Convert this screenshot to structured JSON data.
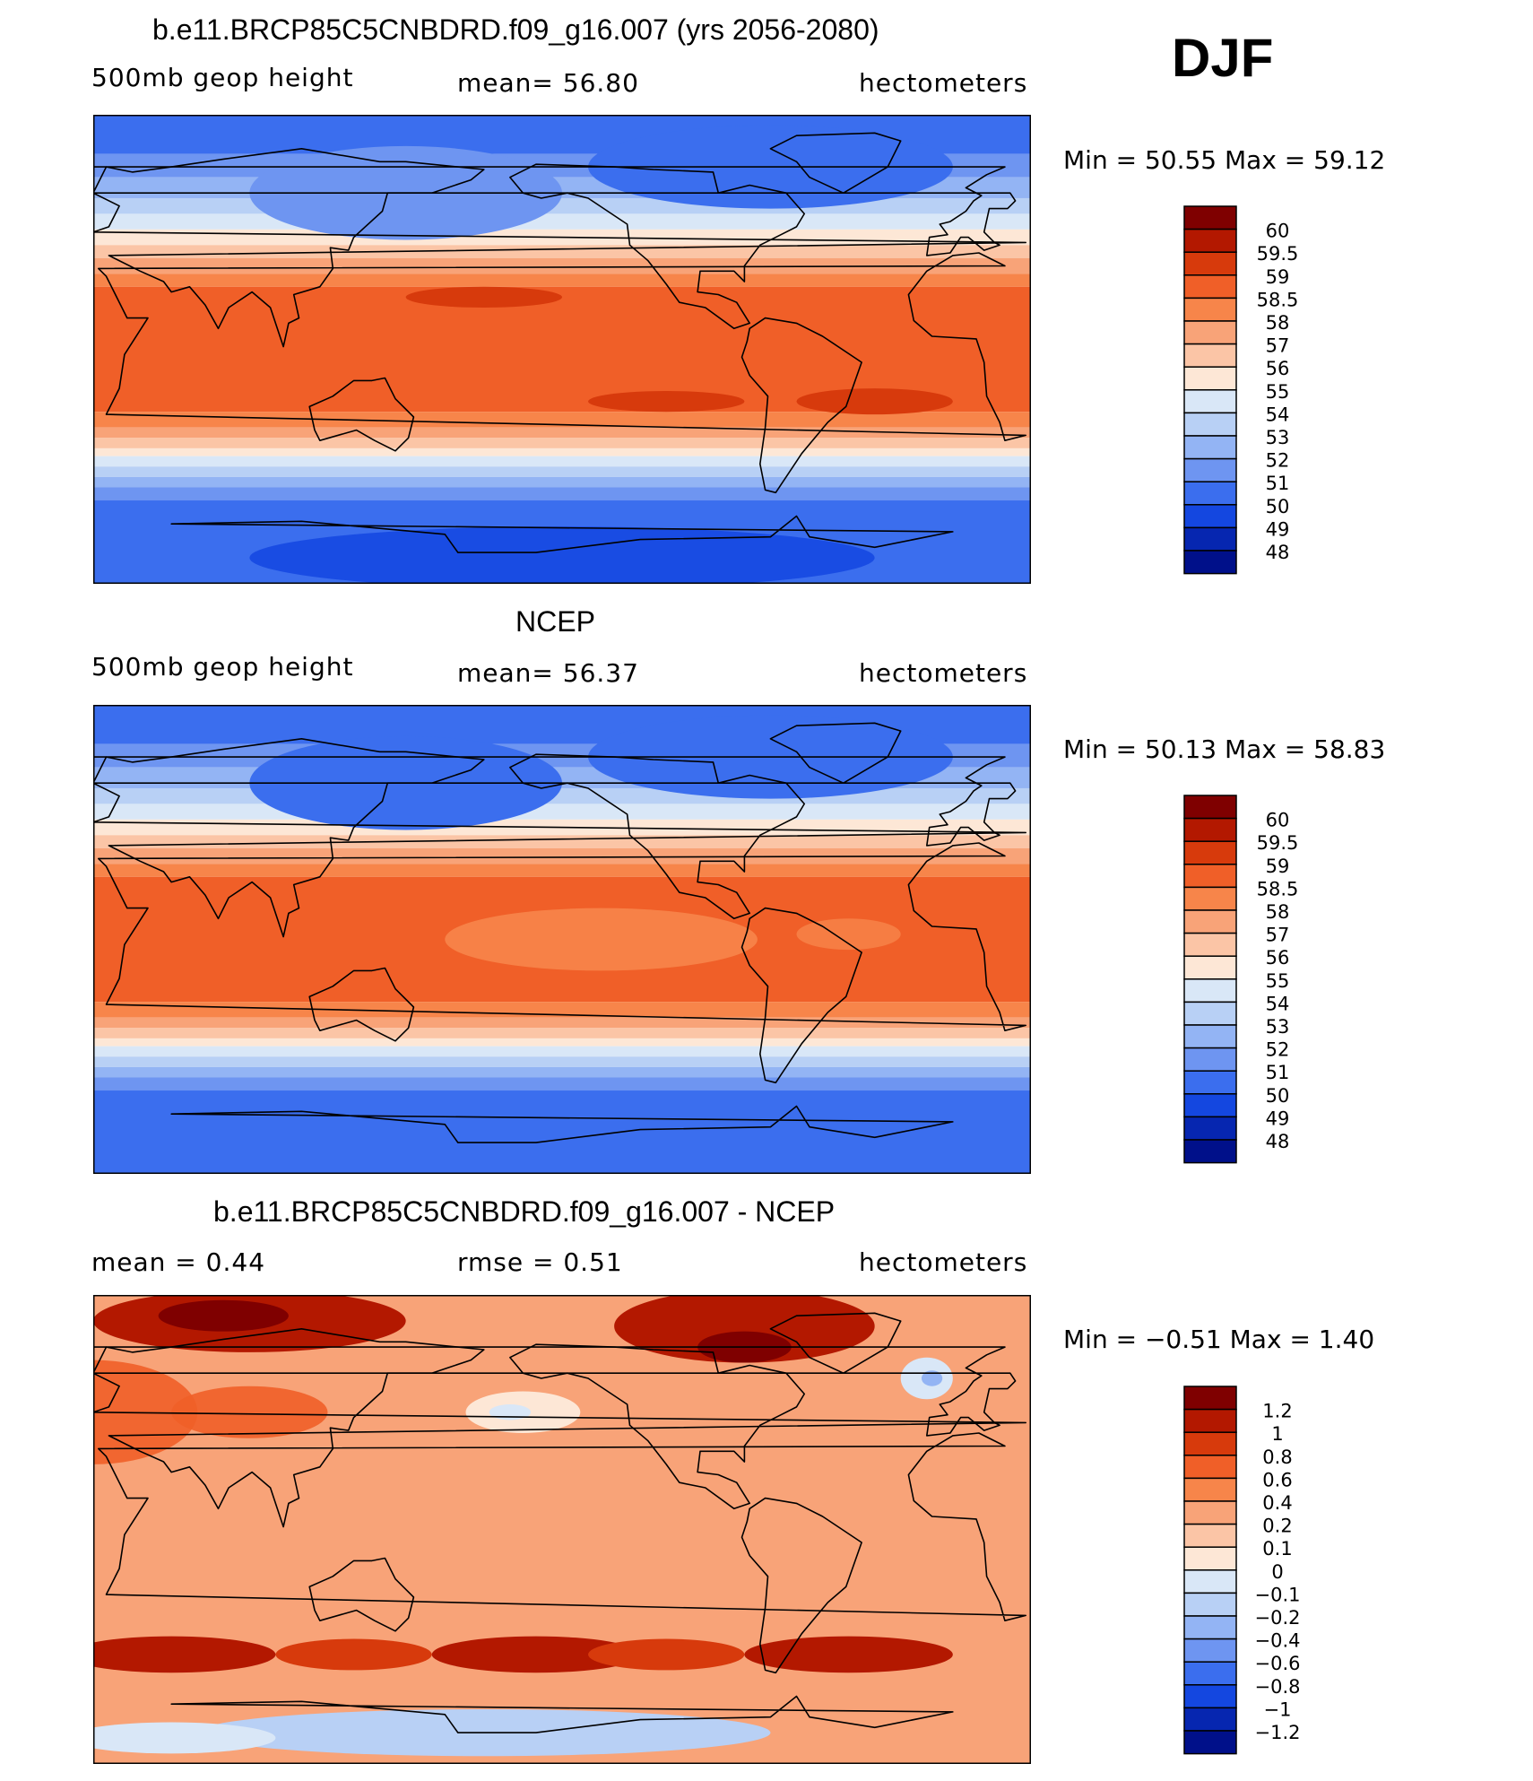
{
  "season": "DJF",
  "panels": [
    {
      "title": "b.e11.BRCP85C5CNBDRD.f09_g16.007 (yrs 2056-2080)",
      "variable": "500mb geop height",
      "stat": "mean=   56.80",
      "units": "hectometers",
      "minmax": "Min =   50.55  Max =   59.12",
      "colorbar": {
        "labels": [
          "60",
          "59.5",
          "59",
          "58.5",
          "58",
          "57",
          "56",
          "55",
          "54",
          "53",
          "52",
          "51",
          "50",
          "49",
          "48"
        ],
        "colors": [
          "#7f0000",
          "#b31800",
          "#d73a0c",
          "#f05f28",
          "#f7854a",
          "#f8a378",
          "#fbc5a6",
          "#fde7d6",
          "#d9e7f7",
          "#b8d0f5",
          "#93b4f4",
          "#6e95f1",
          "#3b6eee",
          "#1447e0",
          "#0626b0",
          "#00108a"
        ]
      },
      "map_style": "absolute"
    },
    {
      "title": "NCEP",
      "variable": "500mb geop height",
      "stat": "mean=   56.37",
      "units": "hectometers",
      "minmax": "Min =   50.13  Max =   58.83",
      "colorbar": {
        "labels": [
          "60",
          "59.5",
          "59",
          "58.5",
          "58",
          "57",
          "56",
          "55",
          "54",
          "53",
          "52",
          "51",
          "50",
          "49",
          "48"
        ],
        "colors": [
          "#7f0000",
          "#b31800",
          "#d73a0c",
          "#f05f28",
          "#f7854a",
          "#f8a378",
          "#fbc5a6",
          "#fde7d6",
          "#d9e7f7",
          "#b8d0f5",
          "#93b4f4",
          "#6e95f1",
          "#3b6eee",
          "#1447e0",
          "#0626b0",
          "#00108a"
        ]
      },
      "map_style": "absolute"
    },
    {
      "title": "b.e11.BRCP85C5CNBDRD.f09_g16.007 - NCEP",
      "variable": "mean =    0.44",
      "stat": "rmse =    0.51",
      "units": "hectometers",
      "minmax": "Min =   −0.51  Max =    1.40",
      "colorbar": {
        "labels": [
          "1.2",
          "1",
          "0.8",
          "0.6",
          "0.4",
          "0.2",
          "0.1",
          "0",
          "−0.1",
          "−0.2",
          "−0.4",
          "−0.6",
          "−0.8",
          "−1",
          "−1.2"
        ],
        "colors": [
          "#7f0000",
          "#b31800",
          "#d73a0c",
          "#f05f28",
          "#f7854a",
          "#f8a378",
          "#fbc5a6",
          "#fde7d6",
          "#d9e7f7",
          "#b8d0f5",
          "#93b4f4",
          "#6e95f1",
          "#3b6eee",
          "#1447e0",
          "#0626b0",
          "#00108a"
        ]
      },
      "map_style": "difference"
    }
  ]
}
